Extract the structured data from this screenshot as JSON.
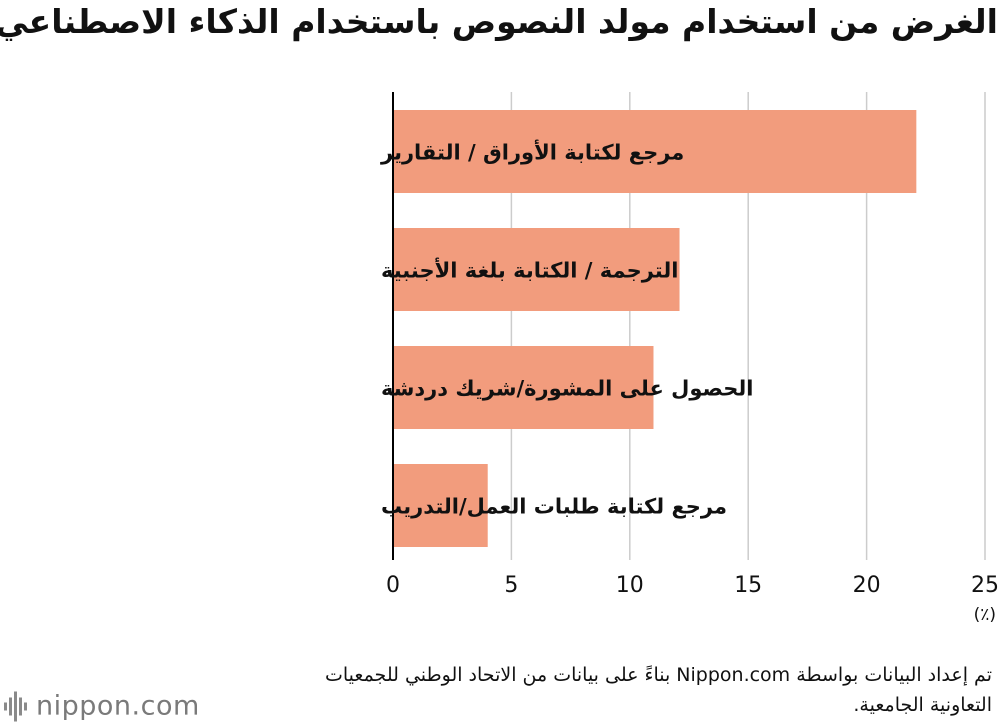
{
  "title": "الغرض من استخدام مولد النصوص باستخدام الذكاء الاصطناعي",
  "source_note": "تم إعداد البيانات بواسطة Nippon.com بناءً على بيانات من الاتحاد الوطني للجمعيات التعاونية الجامعية.",
  "logo_text": "nippon.com",
  "colors": {
    "bar": "#f29c7d",
    "grid": "#cccccc",
    "axis": "#000000"
  },
  "chart_data": {
    "type": "bar",
    "orientation": "horizontal",
    "title": "الغرض من استخدام مولد النصوص باستخدام الذكاء الاصطناعي",
    "categories": [
      "مرجع لكتابة الأوراق / التقارير",
      "الترجمة / الكتابة بلغة الأجنبية",
      "الحصول على المشورة/شريك دردشة",
      "مرجع لكتابة طلبات العمل/التدريب"
    ],
    "values": [
      22.1,
      12.1,
      11.0,
      4.0
    ],
    "xlim": [
      0,
      25
    ],
    "xticks": [
      0,
      5,
      10,
      15,
      20,
      25
    ],
    "unit": "(٪)",
    "grid": true
  }
}
